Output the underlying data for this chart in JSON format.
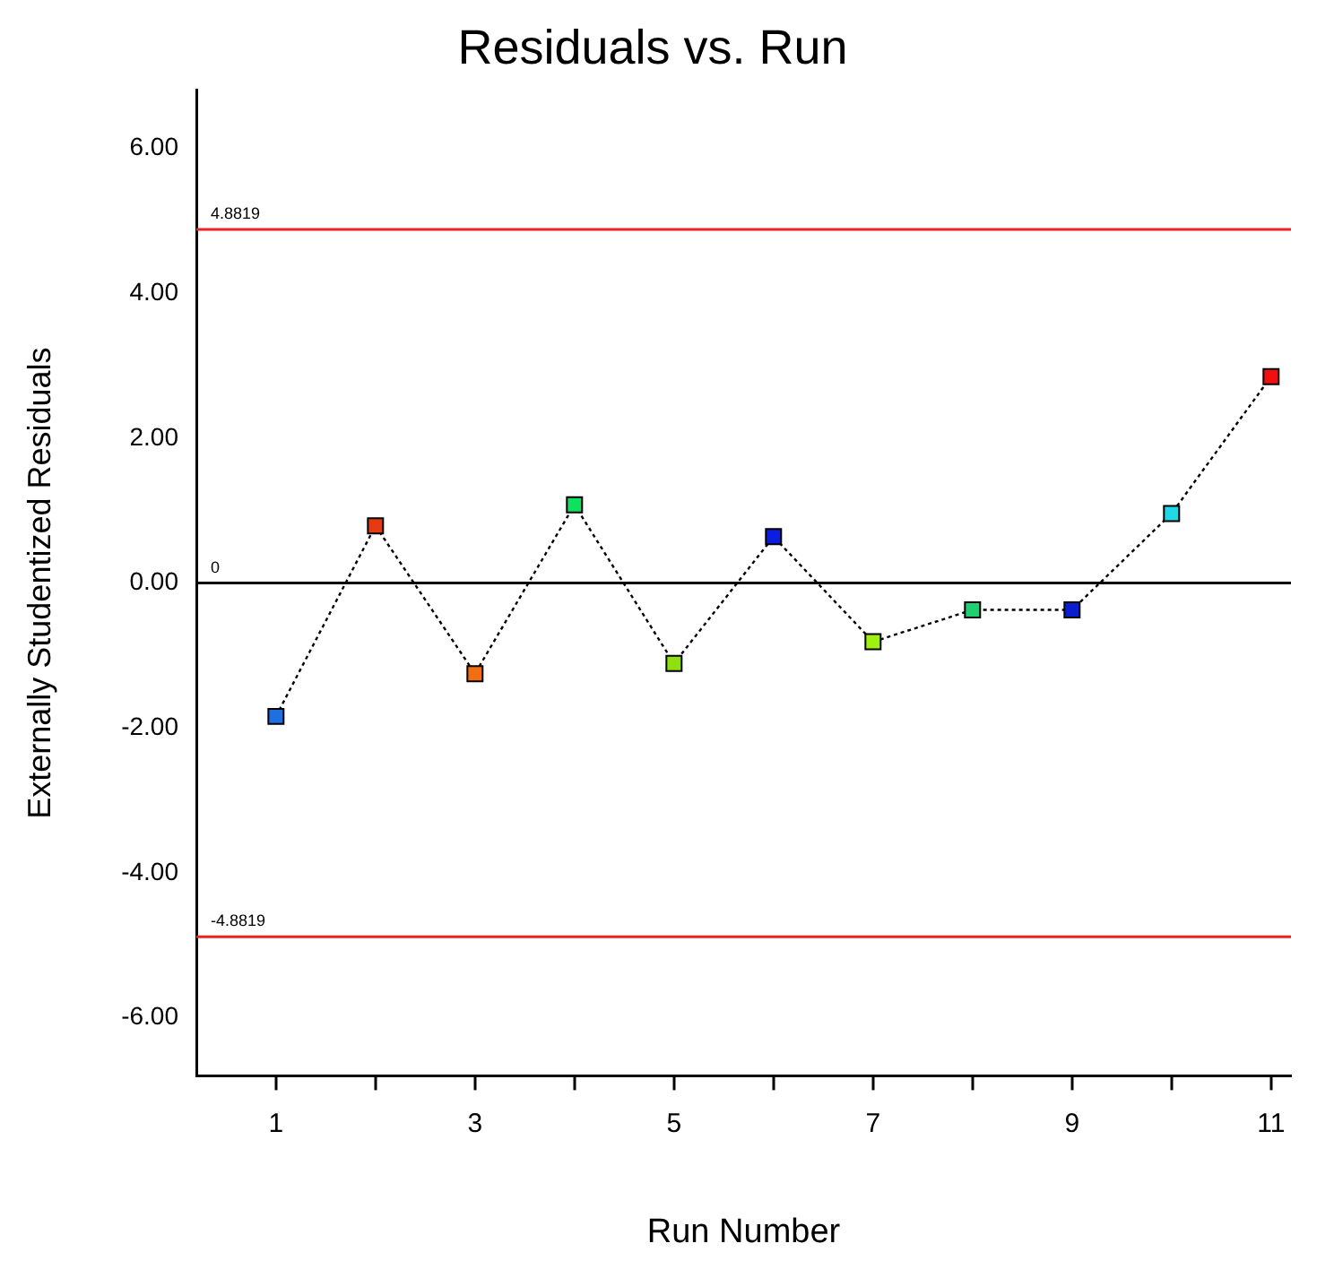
{
  "chart_data": {
    "type": "line",
    "title": "Residuals vs. Run",
    "xlabel": "Run Number",
    "ylabel": "Externally Studentized Residuals",
    "x": [
      1,
      2,
      3,
      4,
      5,
      6,
      7,
      8,
      9,
      10,
      11
    ],
    "series": [
      {
        "color": "#000000",
        "values": [
          -1.84,
          0.79,
          -1.25,
          1.08,
          -1.11,
          0.64,
          -0.81,
          -0.37,
          -0.37,
          0.96,
          2.85
        ],
        "colors": [
          "#1e6fe0",
          "#e83a10",
          "#f07010",
          "#10e060",
          "#90e010",
          "#0a1ee0",
          "#a0f010",
          "#20d070",
          "#0a1ed0",
          "#20d8e8",
          "#f01010"
        ]
      }
    ],
    "xlim": [
      0.2,
      11.2
    ],
    "xticks": [
      1,
      {
        "value": 2,
        "label": null
      },
      3,
      {
        "value": 4,
        "label": null
      },
      5,
      {
        "value": 6,
        "label": null
      },
      7,
      {
        "value": 8,
        "label": null
      },
      9,
      {
        "value": 10,
        "label": null
      },
      11
    ],
    "ylim": [
      -6.8,
      6.8
    ],
    "yticks": [
      {
        "value": -6,
        "label": "-6.00"
      },
      {
        "value": -4,
        "label": "-4.00"
      },
      {
        "value": -2,
        "label": "-2.00"
      },
      {
        "value": 0,
        "label": "0.00"
      },
      {
        "value": 2,
        "label": "2.00"
      },
      {
        "value": 4,
        "label": "4.00"
      },
      {
        "value": 6,
        "label": "6.00"
      }
    ],
    "ref_lines": [
      {
        "axis": "y",
        "value": 4.8819,
        "label": "4.8819",
        "color": "#ee2020"
      },
      {
        "axis": "y",
        "value": 0,
        "label": "0",
        "color": "#000000"
      },
      {
        "axis": "y",
        "value": -4.8819,
        "label": "-4.8819",
        "color": "#ee2020"
      }
    ],
    "marker": "square",
    "line_style": "dotted",
    "grid": false,
    "legend": false
  }
}
